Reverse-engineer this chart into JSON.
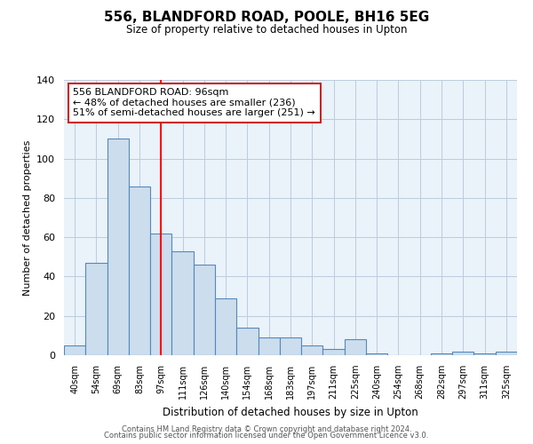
{
  "title_line1": "556, BLANDFORD ROAD, POOLE, BH16 5EG",
  "title_line2": "Size of property relative to detached houses in Upton",
  "xlabel": "Distribution of detached houses by size in Upton",
  "ylabel": "Number of detached properties",
  "bar_labels": [
    "40sqm",
    "54sqm",
    "69sqm",
    "83sqm",
    "97sqm",
    "111sqm",
    "126sqm",
    "140sqm",
    "154sqm",
    "168sqm",
    "183sqm",
    "197sqm",
    "211sqm",
    "225sqm",
    "240sqm",
    "254sqm",
    "268sqm",
    "282sqm",
    "297sqm",
    "311sqm",
    "325sqm"
  ],
  "bar_values": [
    5,
    47,
    110,
    86,
    62,
    53,
    46,
    29,
    14,
    9,
    9,
    5,
    3,
    8,
    1,
    0,
    0,
    1,
    2,
    1,
    2
  ],
  "bar_color": "#ccdded",
  "bar_edge_color": "#5588bb",
  "vline_color": "red",
  "vline_pos": 4.5,
  "annotation_title": "556 BLANDFORD ROAD: 96sqm",
  "annotation_line1": "← 48% of detached houses are smaller (236)",
  "annotation_line2": "51% of semi-detached houses are larger (251) →",
  "box_facecolor": "white",
  "box_edgecolor": "#cc2222",
  "ylim": [
    0,
    140
  ],
  "yticks": [
    0,
    20,
    40,
    60,
    80,
    100,
    120,
    140
  ],
  "bg_color": "#eaf2fa",
  "footer_line1": "Contains HM Land Registry data © Crown copyright and database right 2024.",
  "footer_line2": "Contains public sector information licensed under the Open Government Licence v3.0."
}
